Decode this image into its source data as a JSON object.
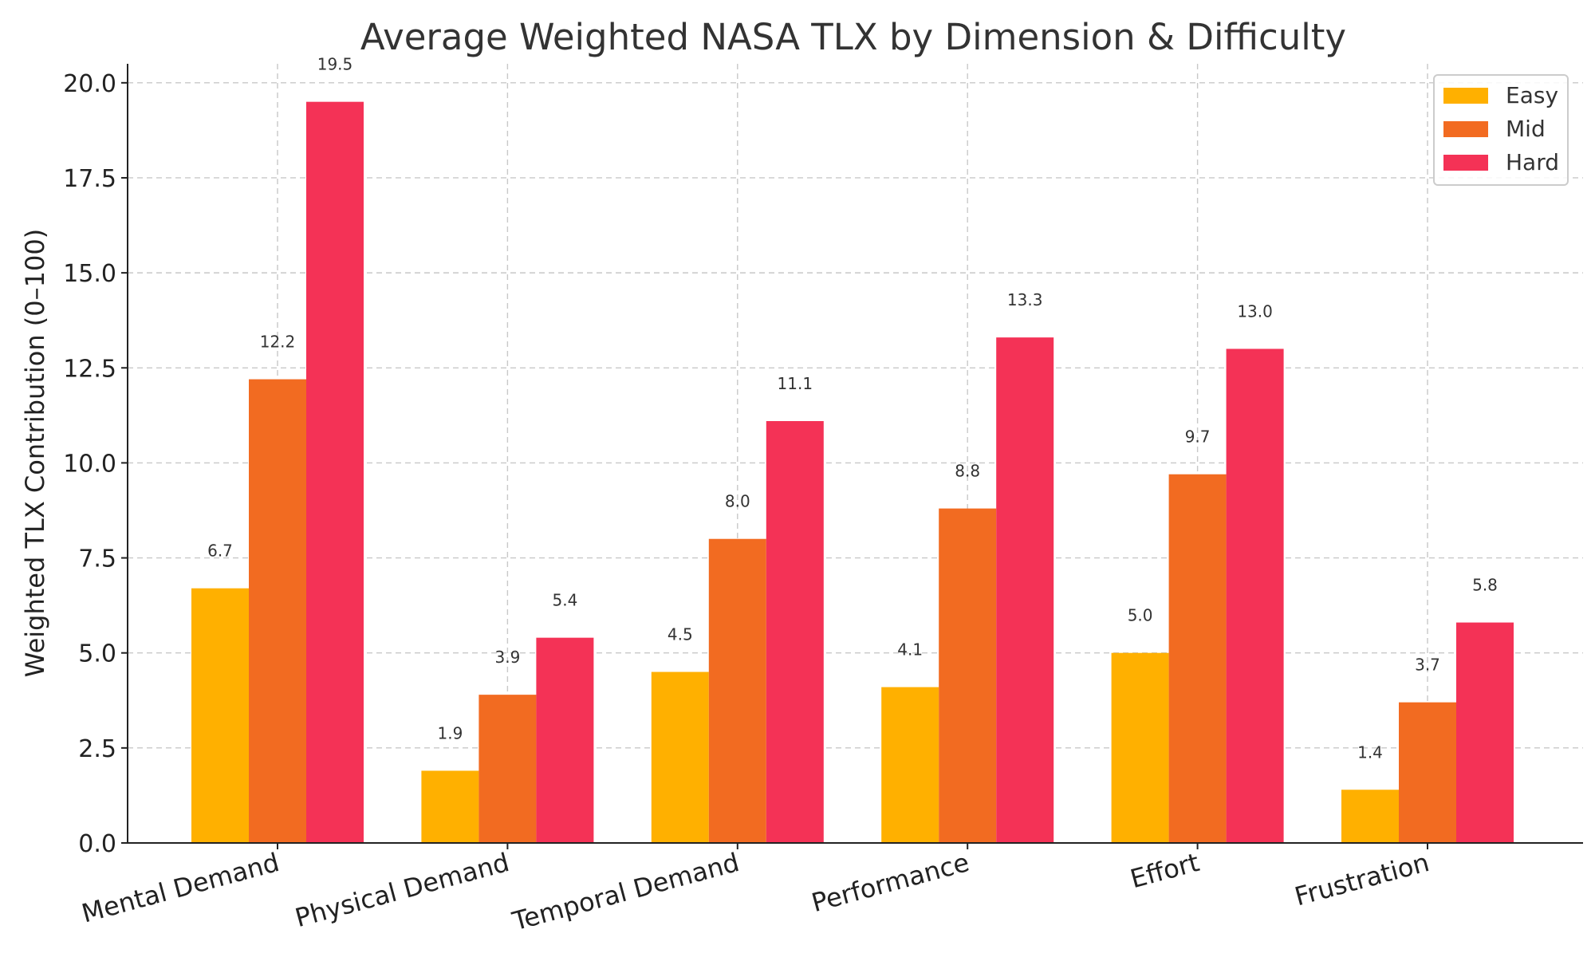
{
  "chart_data": {
    "type": "bar",
    "title": "Average Weighted NASA TLX by Dimension & Difficulty",
    "xlabel": "",
    "ylabel": "Weighted TLX Contribution (0–100)",
    "ylim": [
      0,
      20.5
    ],
    "yticks": [
      "0.0",
      "2.5",
      "5.0",
      "7.5",
      "10.0",
      "12.5",
      "15.0",
      "17.5",
      "20.0"
    ],
    "ytick_values": [
      0,
      2.5,
      5,
      7.5,
      10,
      12.5,
      15,
      17.5,
      20
    ],
    "categories": [
      "Mental Demand",
      "Physical Demand",
      "Temporal Demand",
      "Performance",
      "Effort",
      "Frustration"
    ],
    "series": [
      {
        "name": "Easy",
        "color": "#FFB000",
        "values": [
          6.7,
          1.9,
          4.5,
          4.1,
          5.0,
          1.4
        ],
        "labels": [
          "6.7",
          "1.9",
          "4.5",
          "4.1",
          "5.0",
          "1.4"
        ]
      },
      {
        "name": "Mid",
        "color": "#F26B21",
        "values": [
          12.2,
          3.9,
          8.0,
          8.8,
          9.7,
          3.7
        ],
        "labels": [
          "12.2",
          "3.9",
          "8.0",
          "8.8",
          "9.7",
          "3.7"
        ]
      },
      {
        "name": "Hard",
        "color": "#F43256",
        "values": [
          19.5,
          5.4,
          11.1,
          13.3,
          13.0,
          5.8
        ],
        "labels": [
          "19.5",
          "5.4",
          "11.1",
          "13.3",
          "13.0",
          "5.8"
        ]
      }
    ],
    "grid": true,
    "legend": "top-right"
  }
}
